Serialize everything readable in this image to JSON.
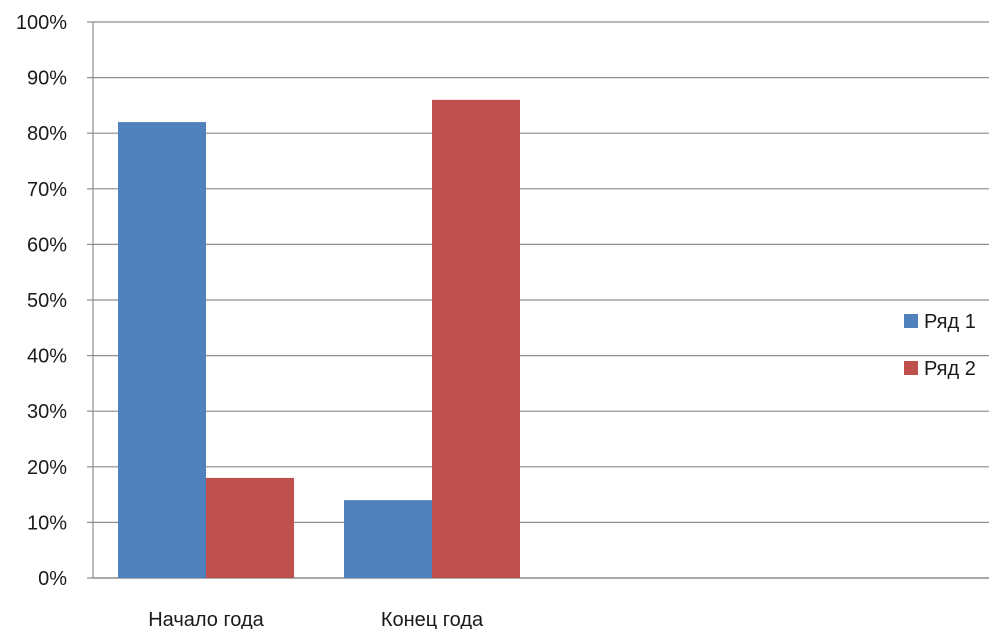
{
  "chart_data": {
    "type": "bar",
    "categories": [
      "Начало года",
      "Конец года"
    ],
    "series": [
      {
        "name": "Ряд 1",
        "values": [
          82,
          14
        ],
        "color": "#4f81bd"
      },
      {
        "name": "Ряд 2",
        "values": [
          18,
          86
        ],
        "color": "#c0504d"
      }
    ],
    "ylim": [
      0,
      100
    ],
    "y_ticks": [
      0,
      10,
      20,
      30,
      40,
      50,
      60,
      70,
      80,
      90,
      100
    ],
    "y_tick_suffix": "%",
    "grid": true,
    "legend": "right",
    "title": "",
    "xlabel": "",
    "ylabel": ""
  }
}
